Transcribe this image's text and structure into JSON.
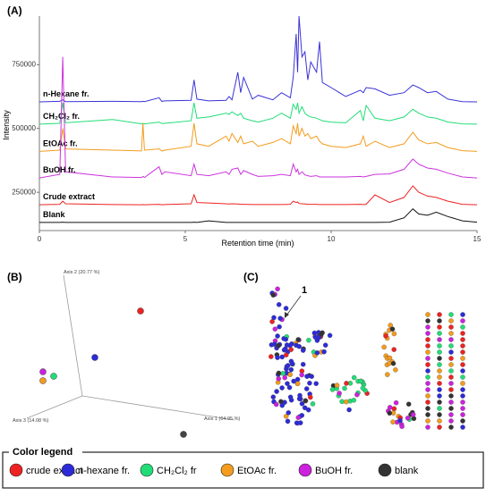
{
  "chart_data": {
    "type": "line",
    "panel_label": "(A)",
    "xlabel": "Retention time (min)",
    "ylabel": "Intensity",
    "x": [
      0,
      0.7,
      0.8,
      0.9,
      2.5,
      3.5,
      3.55,
      3.6,
      4.1,
      4.2,
      4.3,
      5.2,
      5.3,
      5.4,
      5.8,
      6.4,
      6.5,
      6.6,
      6.8,
      6.9,
      7.0,
      7.3,
      7.5,
      8.0,
      8.3,
      8.6,
      8.7,
      8.8,
      8.85,
      8.9,
      9.0,
      9.1,
      9.2,
      9.3,
      9.5,
      9.6,
      9.7,
      10.0,
      10.5,
      11.0,
      11.1,
      11.2,
      11.5,
      12.0,
      12.5,
      12.8,
      13.0,
      13.3,
      13.6,
      14.0,
      14.5,
      15
    ],
    "xlim": [
      0,
      15
    ],
    "xticks": [
      0,
      5,
      10,
      15
    ],
    "ylim": [
      100000,
      940000
    ],
    "yticks": [
      250000,
      500000,
      750000
    ],
    "series": [
      {
        "name": "n-Hexane fr.",
        "color": "#3a33d6",
        "values": [
          604000,
          606000,
          612000,
          605000,
          606000,
          605000,
          606000,
          605000,
          620000,
          606000,
          608000,
          610000,
          690000,
          615000,
          608000,
          610000,
          625000,
          612000,
          720000,
          640000,
          700000,
          615000,
          630000,
          612000,
          640000,
          620000,
          700000,
          870000,
          720000,
          940000,
          780000,
          800000,
          690000,
          760000,
          720000,
          840000,
          680000,
          660000,
          625000,
          650000,
          640000,
          660000,
          655000,
          630000,
          640000,
          670000,
          660000,
          640000,
          645000,
          615000,
          605000,
          604000
        ]
      },
      {
        "name": "CH₂Cl₂ fr.",
        "color": "#22dd77",
        "values": [
          517000,
          520000,
          600000,
          522000,
          535000,
          518000,
          520000,
          518000,
          525000,
          519000,
          520000,
          530000,
          600000,
          540000,
          545000,
          560000,
          555000,
          565000,
          550000,
          560000,
          540000,
          530000,
          525000,
          540000,
          560000,
          540000,
          595000,
          575000,
          600000,
          560000,
          585000,
          560000,
          550000,
          545000,
          540000,
          535000,
          530000,
          525000,
          522000,
          570000,
          530000,
          590000,
          540000,
          530000,
          545000,
          575000,
          560000,
          545000,
          540000,
          525000,
          518000,
          517000
        ]
      },
      {
        "name": "EtOAc fr.",
        "color": "#f39c1e",
        "values": [
          410000,
          415000,
          500000,
          420000,
          415000,
          412000,
          520000,
          415000,
          420000,
          412000,
          415000,
          430000,
          520000,
          440000,
          430000,
          470000,
          450000,
          480000,
          445000,
          470000,
          440000,
          450000,
          430000,
          445000,
          460000,
          440000,
          510000,
          480000,
          520000,
          470000,
          500000,
          470000,
          480000,
          460000,
          470000,
          450000,
          440000,
          430000,
          425000,
          440000,
          470000,
          430000,
          450000,
          425000,
          440000,
          485000,
          455000,
          440000,
          445000,
          425000,
          413000,
          410000
        ]
      },
      {
        "name": "BuOH fr.",
        "color": "#cc33dd",
        "values": [
          306000,
          320000,
          780000,
          330000,
          310000,
          308000,
          312000,
          308000,
          350000,
          320000,
          330000,
          315000,
          360000,
          320000,
          315000,
          330000,
          320000,
          340000,
          345000,
          320000,
          335000,
          320000,
          312000,
          315000,
          320000,
          315000,
          360000,
          330000,
          340000,
          320000,
          330000,
          318000,
          315000,
          312000,
          315000,
          310000,
          310000,
          310000,
          310000,
          312000,
          310000,
          312000,
          320000,
          322000,
          340000,
          380000,
          360000,
          345000,
          340000,
          325000,
          310000,
          306000
        ]
      },
      {
        "name": "Crude extract",
        "color": "#ee2222",
        "values": [
          201000,
          203000,
          215000,
          205000,
          202000,
          201000,
          202000,
          201000,
          203000,
          201000,
          202000,
          205000,
          240000,
          210000,
          208000,
          205000,
          204000,
          205000,
          204000,
          203000,
          203000,
          202000,
          202000,
          202000,
          202000,
          203000,
          215000,
          210000,
          212000,
          206000,
          205000,
          204000,
          203000,
          203000,
          203000,
          202000,
          202000,
          202000,
          202000,
          203000,
          202000,
          203000,
          240000,
          210000,
          230000,
          275000,
          250000,
          235000,
          230000,
          215000,
          203000,
          201000
        ]
      },
      {
        "name": "Blank",
        "color": "#111111",
        "values": [
          132000,
          132000,
          133000,
          132000,
          132000,
          132000,
          132000,
          132000,
          132000,
          132000,
          132000,
          132000,
          133000,
          132000,
          138000,
          132000,
          132000,
          132000,
          132000,
          132000,
          132000,
          132000,
          132000,
          132000,
          132000,
          132000,
          132000,
          132000,
          132000,
          132000,
          132000,
          132000,
          132000,
          132000,
          132000,
          132000,
          132000,
          132000,
          132000,
          132000,
          132000,
          132000,
          132000,
          133000,
          150000,
          185000,
          165000,
          160000,
          172000,
          155000,
          138000,
          133000
        ]
      }
    ]
  },
  "panel_b": {
    "label": "(B)",
    "axis_1": "Axis 1 (64.95 %)",
    "axis_2": "Axis 2 (20.77 %)",
    "axis_3": "Axis 3 (14.08 %)"
  },
  "panel_c": {
    "label": "(C)",
    "node_label": "1"
  },
  "legend": {
    "title": "Color legend",
    "items": [
      {
        "label": "crude extract",
        "color": "#ee2222"
      },
      {
        "label": "n-hexane fr.",
        "color": "#2d2bd8"
      },
      {
        "label": "CH₂Cl₂ fr",
        "color": "#22dd77"
      },
      {
        "label": "EtOAc fr.",
        "color": "#f39c1e"
      },
      {
        "label": "BuOH fr.",
        "color": "#cc22dd"
      },
      {
        "label": "blank",
        "color": "#333333"
      }
    ]
  }
}
